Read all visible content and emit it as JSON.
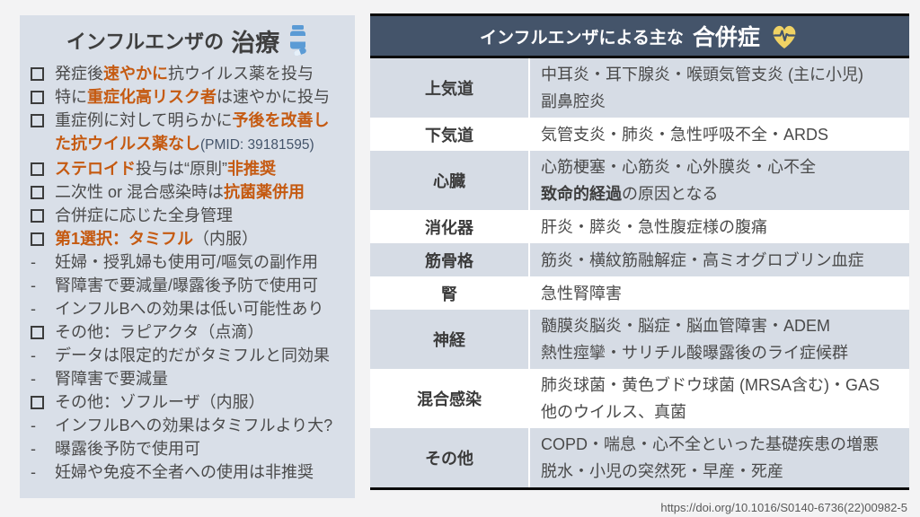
{
  "slide": {
    "footer_url": "https://doi.org/10.1016/S0140-6736(22)00982-5"
  },
  "colors": {
    "panel_bg": "#D9DFE8",
    "header_bg": "#44546A",
    "row_alt_bg": "#D6DCE5",
    "row_bg": "#FFFFFF",
    "accent_orange": "#C55A11",
    "text_dark": "#3F3F3F",
    "pmid_navy": "#44546A",
    "icon_blue": "#5B9BD5",
    "icon_gold": "#F0D264"
  },
  "left_panel": {
    "title_prefix": "インフルエンザの",
    "title_emph": "治療",
    "icon": "pill-bottle-icon",
    "items": [
      {
        "bullet": "square",
        "segments": [
          {
            "t": "発症後",
            "s": "n"
          },
          {
            "t": "速やかに",
            "s": "o"
          },
          {
            "t": "抗ウイルス薬を投与",
            "s": "n"
          }
        ]
      },
      {
        "bullet": "square",
        "segments": [
          {
            "t": "特に",
            "s": "n"
          },
          {
            "t": "重症化高リスク者",
            "s": "o"
          },
          {
            "t": "は速やかに投与",
            "s": "n"
          }
        ]
      },
      {
        "bullet": "square",
        "segments": [
          {
            "t": "重症例に対して明らかに",
            "s": "n"
          },
          {
            "t": "予後を改善し",
            "s": "o"
          }
        ]
      },
      {
        "bullet": "none",
        "segments": [
          {
            "t": "た抗ウイルス薬なし",
            "s": "o"
          },
          {
            "t": "(PMID: 39181595)",
            "s": "s"
          }
        ]
      },
      {
        "bullet": "square",
        "segments": [
          {
            "t": "ステロイド",
            "s": "o"
          },
          {
            "t": "投与は“原則”",
            "s": "n"
          },
          {
            "t": "非推奨",
            "s": "o"
          }
        ]
      },
      {
        "bullet": "square",
        "segments": [
          {
            "t": "二次性 or 混合感染時は",
            "s": "n"
          },
          {
            "t": "抗菌薬併用",
            "s": "o"
          }
        ]
      },
      {
        "bullet": "square",
        "segments": [
          {
            "t": "合併症に応じた全身管理",
            "s": "n"
          }
        ]
      },
      {
        "bullet": "square",
        "segments": [
          {
            "t": "第1選択：タミフル",
            "s": "o"
          },
          {
            "t": "（内服）",
            "s": "n"
          }
        ]
      },
      {
        "bullet": "dash",
        "segments": [
          {
            "t": "妊婦・授乳婦も使用可/嘔気の副作用",
            "s": "n"
          }
        ]
      },
      {
        "bullet": "dash",
        "segments": [
          {
            "t": "腎障害で要減量/曝露後予防で使用可",
            "s": "n"
          }
        ]
      },
      {
        "bullet": "dash",
        "segments": [
          {
            "t": "インフルBへの効果は低い可能性あり",
            "s": "n"
          }
        ]
      },
      {
        "bullet": "square",
        "segments": [
          {
            "t": "その他：ラピアクタ（点滴）",
            "s": "n"
          }
        ]
      },
      {
        "bullet": "dash",
        "segments": [
          {
            "t": "データは限定的だがタミフルと同効果",
            "s": "n"
          }
        ]
      },
      {
        "bullet": "dash",
        "segments": [
          {
            "t": "腎障害で要減量",
            "s": "n"
          }
        ]
      },
      {
        "bullet": "square",
        "segments": [
          {
            "t": "その他：ゾフルーザ（内服）",
            "s": "n"
          }
        ]
      },
      {
        "bullet": "dash",
        "segments": [
          {
            "t": "インフルBへの効果はタミフルより大?",
            "s": "n"
          }
        ]
      },
      {
        "bullet": "dash",
        "segments": [
          {
            "t": "曝露後予防で使用可",
            "s": "n"
          }
        ]
      },
      {
        "bullet": "dash",
        "segments": [
          {
            "t": "妊婦や免疫不全者への使用は非推奨",
            "s": "n"
          }
        ]
      }
    ]
  },
  "table": {
    "title_prefix": "インフルエンザによる主な",
    "title_emph": "合併症",
    "icon": "heart-pulse-icon",
    "rows": [
      {
        "category": "上気道",
        "lines": [
          [
            {
              "t": "中耳炎・耳下腺炎・喉頭気管支炎 (主に小児)",
              "s": "n"
            }
          ],
          [
            {
              "t": "副鼻腔炎",
              "s": "n"
            }
          ]
        ]
      },
      {
        "category": "下気道",
        "lines": [
          [
            {
              "t": "気管支炎・肺炎・急性呼吸不全・ARDS",
              "s": "n"
            }
          ]
        ]
      },
      {
        "category": "心臓",
        "lines": [
          [
            {
              "t": "心筋梗塞・心筋炎・心外膜炎・心不全",
              "s": "n"
            }
          ],
          [
            {
              "t": "致命的経過",
              "s": "b"
            },
            {
              "t": "の原因となる",
              "s": "n"
            }
          ]
        ]
      },
      {
        "category": "消化器",
        "lines": [
          [
            {
              "t": "肝炎・膵炎・急性腹症様の腹痛",
              "s": "n"
            }
          ]
        ]
      },
      {
        "category": "筋骨格",
        "lines": [
          [
            {
              "t": "筋炎・横紋筋融解症・高ミオグロブリン血症",
              "s": "n"
            }
          ]
        ]
      },
      {
        "category": "腎",
        "lines": [
          [
            {
              "t": "急性腎障害",
              "s": "n"
            }
          ]
        ]
      },
      {
        "category": "神経",
        "lines": [
          [
            {
              "t": "髄膜炎脳炎・脳症・脳血管障害・ADEM",
              "s": "n"
            }
          ],
          [
            {
              "t": "熱性痙攣・サリチル酸曝露後のライ症候群",
              "s": "n"
            }
          ]
        ]
      },
      {
        "category": "混合感染",
        "lines": [
          [
            {
              "t": "肺炎球菌・黄色ブドウ球菌 (MRSA含む)・GAS",
              "s": "n"
            }
          ],
          [
            {
              "t": "他のウイルス、真菌",
              "s": "n"
            }
          ]
        ]
      },
      {
        "category": "その他",
        "lines": [
          [
            {
              "t": "COPD・喘息・心不全といった基礎疾患の増悪",
              "s": "n"
            }
          ],
          [
            {
              "t": "脱水・小児の突然死・早産・死産",
              "s": "n"
            }
          ]
        ]
      }
    ]
  }
}
